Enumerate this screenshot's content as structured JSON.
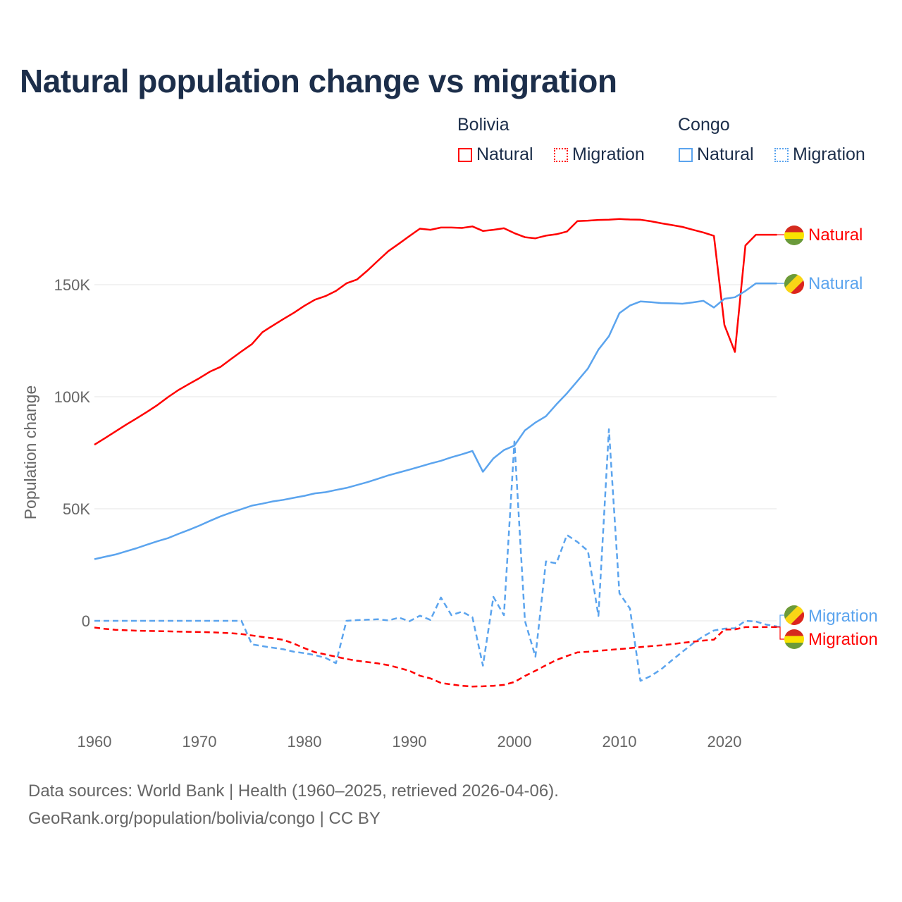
{
  "chart_data": {
    "type": "line",
    "title": "Natural population change vs migration",
    "xlabel": "",
    "ylabel": "Population change",
    "xlim": [
      1960,
      2025
    ],
    "ylim": [
      -35000,
      185000
    ],
    "x_ticks": [
      "1960",
      "1970",
      "1980",
      "1990",
      "2000",
      "2010",
      "2020"
    ],
    "y_ticks": [
      {
        "value": 0,
        "label": "0"
      },
      {
        "value": 50000,
        "label": "50K"
      },
      {
        "value": 100000,
        "label": "100K"
      },
      {
        "value": 150000,
        "label": "150K"
      }
    ],
    "grid": true,
    "legend": {
      "placement": "top-right",
      "groups": [
        {
          "title": "Bolivia",
          "items": [
            "Natural",
            "Migration"
          ]
        },
        {
          "title": "Congo",
          "items": [
            "Natural",
            "Migration"
          ]
        }
      ]
    },
    "x_start": 1960,
    "series": [
      {
        "name": "Bolivia Natural",
        "country": "Bolivia",
        "kind": "Natural",
        "color": "#ff0000",
        "dash": false,
        "end_label": "Natural",
        "values": [
          78.6,
          81.5,
          84.5,
          87.5,
          90.3,
          93.2,
          96.3,
          99.8,
          103,
          105.7,
          108.3,
          111.2,
          113.3,
          116.8,
          120.2,
          123.5,
          128.8,
          131.8,
          134.7,
          137.5,
          140.6,
          143.3,
          144.9,
          147.2,
          150.6,
          152.3,
          156.3,
          160.7,
          165,
          168.3,
          171.7,
          175,
          174.5,
          175.5,
          175.5,
          175.3,
          176,
          174,
          174.5,
          175.2,
          173,
          171.2,
          170.7,
          171.9,
          172.5,
          173.7,
          178.4,
          178.6,
          178.9,
          179,
          179.3,
          179.1,
          179,
          178.3,
          177.4,
          176.6,
          175.8,
          174.5,
          173.3,
          171.8,
          132,
          120,
          167.5,
          172.3,
          172.3,
          172.3
        ]
      },
      {
        "name": "Congo Natural",
        "country": "Congo",
        "kind": "Natural",
        "color": "#5ba4ee",
        "dash": false,
        "end_label": "Natural",
        "values": [
          27.5,
          28.6,
          29.6,
          31,
          32.4,
          34,
          35.5,
          36.9,
          38.8,
          40.6,
          42.5,
          44.6,
          46.6,
          48.3,
          49.8,
          51.4,
          52.3,
          53.3,
          54,
          54.9,
          55.8,
          56.9,
          57.4,
          58.4,
          59.3,
          60.6,
          61.9,
          63.4,
          64.9,
          66.2,
          67.5,
          68.8,
          70.2,
          71.4,
          73,
          74.3,
          75.8,
          66.5,
          72.5,
          76.2,
          78.2,
          85,
          88.5,
          91.3,
          96.6,
          101.5,
          107,
          112.6,
          121,
          127,
          137.3,
          140.7,
          142.5,
          142.2,
          141.8,
          141.7,
          141.5,
          142.1,
          142.8,
          139.8,
          143.7,
          144.4,
          147.2,
          150.6,
          150.6,
          150.6
        ]
      },
      {
        "name": "Congo Migration",
        "country": "Congo",
        "kind": "Migration",
        "color": "#5ba4ee",
        "dash": true,
        "end_label": "Migration",
        "values": [
          0,
          0,
          0,
          0,
          0,
          0,
          0,
          0,
          0,
          0,
          0,
          0,
          0,
          0,
          0,
          -10.5,
          -11.3,
          -12,
          -12.7,
          -13.8,
          -14.4,
          -15.3,
          -16.5,
          -18.9,
          0,
          0.3,
          0.5,
          0.7,
          0.2,
          1.4,
          -0.2,
          2.3,
          0.4,
          10.4,
          2.5,
          4.1,
          1.6,
          -20,
          10.7,
          2.5,
          80,
          0,
          -16,
          26.5,
          25.7,
          38.3,
          35.2,
          31.2,
          2.2,
          85.5,
          12.3,
          5.5,
          -26.8,
          -24.6,
          -21.5,
          -17.6,
          -13.8,
          -10.1,
          -6.9,
          -4.3,
          -3.5,
          -3.3,
          0,
          -0.3,
          -1.7,
          -2.5
        ]
      },
      {
        "name": "Bolivia Migration",
        "country": "Bolivia",
        "kind": "Migration",
        "color": "#ff0000",
        "dash": true,
        "end_label": "Migration",
        "values": [
          -3,
          -3.6,
          -4,
          -4.2,
          -4.4,
          -4.5,
          -4.6,
          -4.7,
          -4.8,
          -4.9,
          -5,
          -5.1,
          -5.3,
          -5.5,
          -5.9,
          -6.5,
          -7.2,
          -7.8,
          -8.5,
          -10.2,
          -12.2,
          -14,
          -15,
          -16,
          -17,
          -17.8,
          -18.4,
          -19,
          -19.8,
          -21,
          -22.3,
          -24.5,
          -25.7,
          -27.7,
          -28.4,
          -29,
          -29.3,
          -29.2,
          -29,
          -28.6,
          -27.3,
          -24.6,
          -22.3,
          -19.8,
          -17.5,
          -15.7,
          -14.1,
          -13.8,
          -13.4,
          -13,
          -12.6,
          -12.2,
          -11.7,
          -11.3,
          -10.9,
          -10.4,
          -9.8,
          -9.3,
          -8.8,
          -8.4,
          -3.9,
          -3.8,
          -2.8,
          -2.8,
          -2.8,
          -2.8
        ]
      }
    ],
    "values_unit": "thousands"
  },
  "footer": {
    "line1": "Data sources: World Bank | Health (1960–2025, retrieved 2026-04-06).",
    "line2": "GeoRank.org/population/bolivia/congo | CC BY"
  }
}
